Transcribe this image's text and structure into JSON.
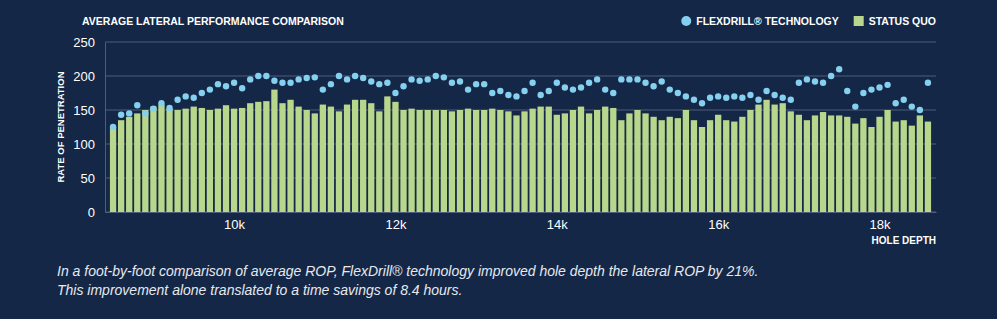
{
  "chart_data": {
    "type": "bar",
    "title": "AVERAGE LATERAL PERFORMANCE COMPARISON",
    "x_label": "HOLE DEPTH",
    "y_label": "RATE OF PENETRATION",
    "caption": [
      "In a foot-by-foot comparison of average ROP, FlexDrill® technology improved hole depth the lateral ROP by 21%.",
      "This improvement alone translated to a time savings of 8.4 hours."
    ],
    "x": [
      8500,
      8600,
      8700,
      8800,
      8900,
      9000,
      9100,
      9200,
      9300,
      9400,
      9500,
      9600,
      9700,
      9800,
      9900,
      10000,
      10100,
      10200,
      10300,
      10400,
      10500,
      10600,
      10700,
      10800,
      10900,
      11000,
      11100,
      11200,
      11300,
      11400,
      11500,
      11600,
      11700,
      11800,
      11900,
      12000,
      12100,
      12200,
      12300,
      12400,
      12500,
      12600,
      12700,
      12800,
      12900,
      13000,
      13100,
      13200,
      13300,
      13400,
      13500,
      13600,
      13700,
      13800,
      13900,
      14000,
      14100,
      14200,
      14300,
      14400,
      14500,
      14600,
      14700,
      14800,
      14900,
      15000,
      15100,
      15200,
      15300,
      15400,
      15500,
      15600,
      15700,
      15800,
      15900,
      16000,
      16100,
      16200,
      16300,
      16400,
      16500,
      16600,
      16700,
      16800,
      16900,
      17000,
      17100,
      17200,
      17300,
      17400,
      17500,
      17600,
      17700,
      17800,
      17900,
      18000,
      18100,
      18200,
      18300,
      18400,
      18500,
      18600
    ],
    "series": [
      {
        "name": "FLEXDRILL® TECHNOLOGY",
        "type": "scatter",
        "marker": "circle",
        "color": "#86d0ef",
        "values": [
          125,
          143,
          145,
          157,
          145,
          152,
          160,
          153,
          165,
          170,
          168,
          175,
          180,
          188,
          185,
          190,
          182,
          195,
          200,
          200,
          193,
          190,
          190,
          195,
          197,
          198,
          180,
          188,
          200,
          195,
          200,
          197,
          192,
          188,
          190,
          175,
          185,
          195,
          193,
          195,
          200,
          198,
          190,
          192,
          180,
          188,
          188,
          175,
          178,
          172,
          170,
          178,
          190,
          172,
          178,
          190,
          183,
          180,
          183,
          190,
          195,
          180,
          175,
          195,
          195,
          195,
          190,
          185,
          192,
          180,
          175,
          170,
          165,
          160,
          168,
          170,
          168,
          170,
          168,
          172,
          165,
          178,
          172,
          168,
          165,
          190,
          195,
          192,
          190,
          200,
          210,
          178,
          155,
          175,
          180,
          183,
          187,
          160,
          165,
          155,
          150,
          190
        ]
      },
      {
        "name": "STATUS QUO",
        "type": "bar",
        "color": "#b9d78c",
        "values": [
          125,
          135,
          140,
          145,
          150,
          155,
          158,
          152,
          150,
          152,
          155,
          153,
          150,
          152,
          157,
          152,
          153,
          160,
          162,
          163,
          180,
          160,
          165,
          155,
          150,
          145,
          158,
          155,
          148,
          158,
          165,
          165,
          160,
          148,
          170,
          162,
          150,
          152,
          150,
          150,
          150,
          150,
          148,
          150,
          152,
          150,
          150,
          152,
          150,
          148,
          142,
          148,
          152,
          155,
          155,
          143,
          145,
          150,
          155,
          145,
          150,
          155,
          153,
          135,
          145,
          150,
          145,
          140,
          135,
          140,
          138,
          150,
          135,
          125,
          135,
          143,
          135,
          133,
          140,
          150,
          158,
          165,
          158,
          160,
          148,
          143,
          135,
          142,
          147,
          142,
          142,
          140,
          130,
          138,
          125,
          140,
          150,
          133,
          135,
          127,
          142,
          133
        ]
      }
    ],
    "xlim": [
      8400,
      18700
    ],
    "xticks": [
      {
        "value": 10000,
        "label": "10k"
      },
      {
        "value": 12000,
        "label": "12k"
      },
      {
        "value": 14000,
        "label": "14k"
      },
      {
        "value": 16000,
        "label": "16k"
      },
      {
        "value": 18000,
        "label": "18k"
      }
    ],
    "ylim": [
      0,
      250
    ],
    "yticks": [
      0,
      50,
      100,
      150,
      200,
      250
    ],
    "grid": true,
    "legend": "top-right"
  }
}
